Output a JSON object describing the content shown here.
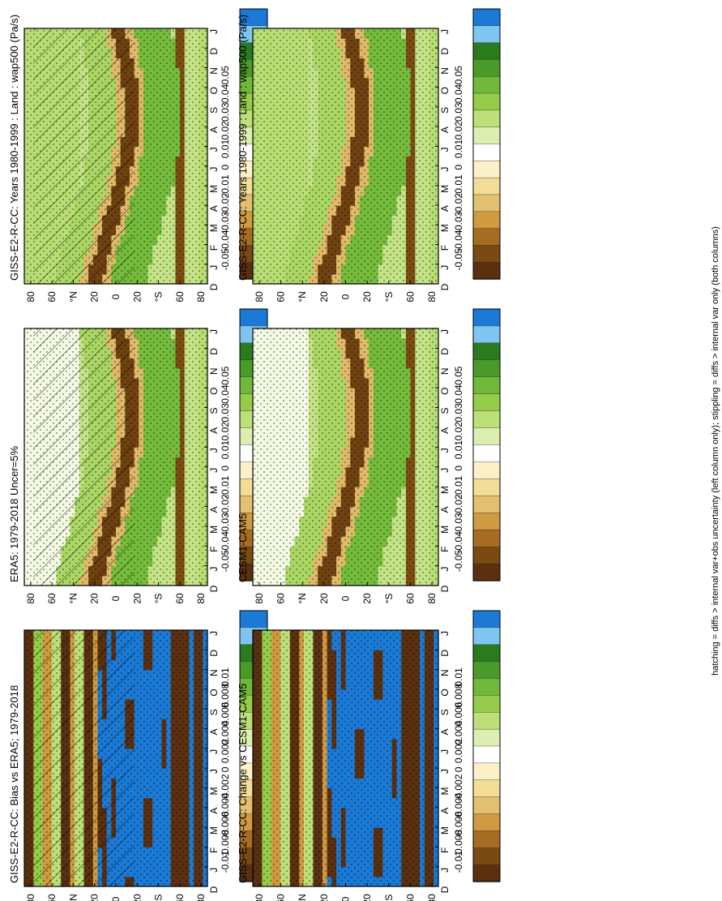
{
  "figure": {
    "footnote": "hatching = diffs > internal var+obs uncertainty (left column only); stippling = diffs > internal var only (both columns)"
  },
  "chart_data": [
    {
      "id": "p1",
      "type": "heatmap",
      "title": "GISS-E2-R-CC: Years 1980-1999 : Land : wap500 (Pa/s)",
      "x_ticks": [
        "D",
        "J",
        "F",
        "M",
        "A",
        "M",
        "J",
        "J",
        "A",
        "S",
        "O",
        "N",
        "D",
        "J"
      ],
      "y_ticks": [
        "80",
        "60",
        "°N",
        "20",
        "0",
        "20",
        "°S",
        "60",
        "80"
      ],
      "colorbar": [
        "0.05",
        "0.04",
        "0.03",
        "0.02",
        "0.01",
        "0",
        "-0.01",
        "-0.02",
        "-0.03",
        "-0.04",
        "-0.05"
      ],
      "hatching": true,
      "stippling": true,
      "palette": "main"
    },
    {
      "id": "p2",
      "type": "heatmap",
      "title": "GISS-E2-R-CC: Years 1980-1999 : Land : wap500 (Pa/s)",
      "x_ticks": [
        "D",
        "J",
        "F",
        "M",
        "A",
        "M",
        "J",
        "J",
        "A",
        "S",
        "O",
        "N",
        "D",
        "J"
      ],
      "y_ticks": [
        "80",
        "60",
        "°N",
        "20",
        "0",
        "20",
        "°S",
        "60",
        "80"
      ],
      "colorbar": [
        "0.05",
        "0.04",
        "0.03",
        "0.02",
        "0.01",
        "0",
        "-0.01",
        "-0.02",
        "-0.03",
        "-0.04",
        "-0.05"
      ],
      "hatching": false,
      "stippling": true,
      "palette": "main"
    },
    {
      "id": "p3",
      "type": "heatmap",
      "title": "ERA5: 1979-2018 Uncer=5%",
      "x_ticks": [
        "D",
        "J",
        "F",
        "M",
        "A",
        "M",
        "J",
        "J",
        "A",
        "S",
        "O",
        "N",
        "D",
        "J"
      ],
      "y_ticks": [
        "80",
        "60",
        "°N",
        "20",
        "0",
        "20",
        "°S",
        "60",
        "80"
      ],
      "colorbar": [
        "0.05",
        "0.04",
        "0.03",
        "0.02",
        "0.01",
        "0",
        "-0.01",
        "-0.02",
        "-0.03",
        "-0.04",
        "-0.05"
      ],
      "hatching": true,
      "stippling": true,
      "palette": "main"
    },
    {
      "id": "p4",
      "type": "heatmap",
      "title": "CESM1-CAM5",
      "x_ticks": [
        "D",
        "J",
        "F",
        "M",
        "A",
        "M",
        "J",
        "J",
        "A",
        "S",
        "O",
        "N",
        "D",
        "J"
      ],
      "y_ticks": [
        "80",
        "60",
        "°N",
        "20",
        "0",
        "20",
        "°S",
        "60",
        "80"
      ],
      "colorbar": [
        "0.05",
        "0.04",
        "0.03",
        "0.02",
        "0.01",
        "0",
        "-0.01",
        "-0.02",
        "-0.03",
        "-0.04",
        "-0.05"
      ],
      "hatching": false,
      "stippling": true,
      "palette": "main"
    },
    {
      "id": "p5",
      "type": "heatmap",
      "title": "GISS-E2-R-CC: Bias vs ERA5; 1979-2018",
      "x_ticks": [
        "D",
        "J",
        "F",
        "M",
        "A",
        "M",
        "J",
        "J",
        "A",
        "S",
        "O",
        "N",
        "D",
        "J"
      ],
      "y_ticks": [
        "80",
        "60",
        "°N",
        "20",
        "0",
        "20",
        "°S",
        "60",
        "80"
      ],
      "colorbar": [
        "0.01",
        "0.008",
        "0.006",
        "0.004",
        "0.002",
        "0",
        "-0.002",
        "-0.004",
        "-0.006",
        "-0.008",
        "-0.01"
      ],
      "hatching": true,
      "stippling": true,
      "palette": "diff"
    },
    {
      "id": "p6",
      "type": "heatmap",
      "title": "GISS-E2-R-CC: Change vs CESM1-CAM5",
      "x_ticks": [
        "D",
        "J",
        "F",
        "M",
        "A",
        "M",
        "J",
        "J",
        "A",
        "S",
        "O",
        "N",
        "D",
        "J"
      ],
      "y_ticks": [
        "80",
        "60",
        "°N",
        "20",
        "0",
        "20",
        "°S",
        "60",
        "80"
      ],
      "colorbar": [
        "0.01",
        "0.008",
        "0.006",
        "0.004",
        "0.002",
        "0",
        "-0.002",
        "-0.004",
        "-0.006",
        "-0.008",
        "-0.01"
      ],
      "hatching": false,
      "stippling": true,
      "palette": "diff"
    }
  ],
  "colors": {
    "colorbar_swatches": [
      "#1a7ad6",
      "#7ec6f0",
      "#2a7a1e",
      "#4a9a2a",
      "#6fb83a",
      "#95cd4a",
      "#bcdf78",
      "#dcefb0",
      "#ffffff",
      "#fbf0c8",
      "#f2dc96",
      "#e2c070",
      "#cf9a40",
      "#a66d22",
      "#7a4a12",
      "#5a3010"
    ]
  }
}
